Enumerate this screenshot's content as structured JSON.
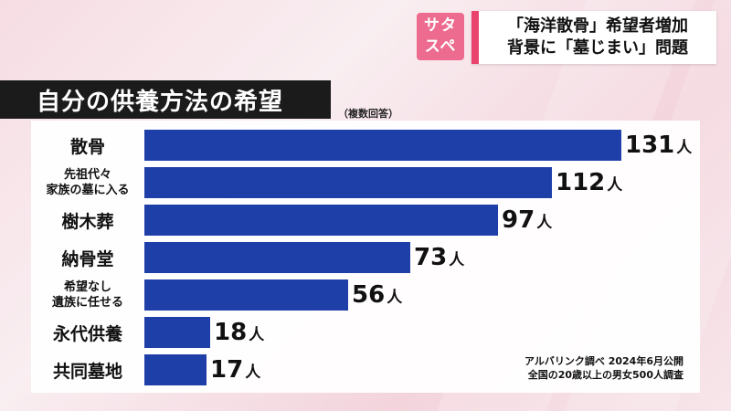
{
  "logo": {
    "line1": "サタ",
    "line2": "スペ"
  },
  "headline": {
    "line1": "「海洋散骨」希望者増加",
    "line2": "背景に「墓じまい」問題"
  },
  "chart_data": {
    "type": "bar",
    "orientation": "horizontal",
    "title": "自分の供養方法の希望",
    "note": "（複数回答）",
    "categories": [
      "散骨",
      "先祖代々\n家族の墓に入る",
      "樹木葬",
      "納骨堂",
      "希望なし\n遺族に任せる",
      "永代供養",
      "共同墓地"
    ],
    "values": [
      131,
      112,
      97,
      73,
      56,
      18,
      17
    ],
    "value_labels": [
      "131",
      "112",
      "97",
      "73",
      "56",
      "18",
      "17"
    ],
    "unit": "人",
    "xlim": [
      0,
      140
    ],
    "grid": false,
    "bar_color": "#1f3fa8"
  },
  "source": {
    "line1": "アルバリンク調べ 2024年6月公開",
    "line2": "全国の20歳以上の男女500人調査"
  }
}
